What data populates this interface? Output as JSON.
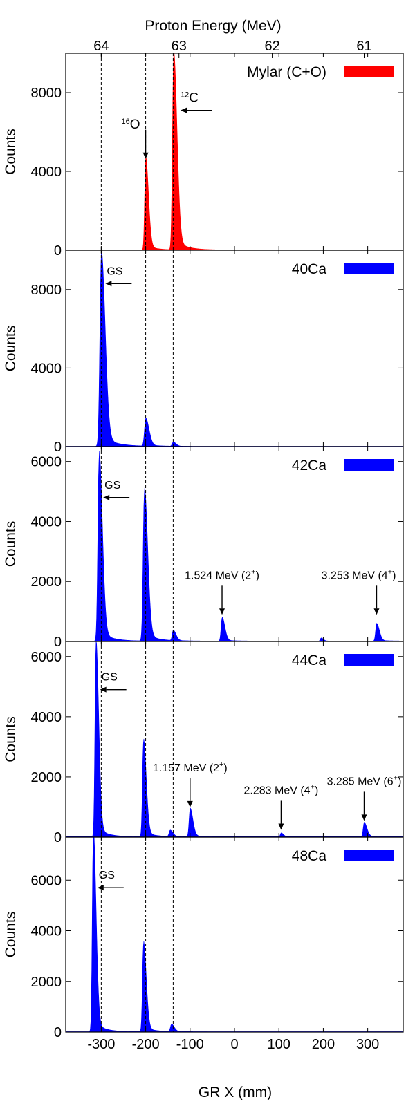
{
  "chart_data": {
    "type": "area",
    "top_axis_label": "Proton Energy (MeV)",
    "top_ticks": [
      "64",
      "63",
      "62",
      "61"
    ],
    "top_tick_x": [
      -300,
      -125,
      85,
      292
    ],
    "xlabel": "GR X (mm)",
    "xlim": [
      -380,
      380
    ],
    "x_ticks": [
      -300,
      -200,
      -100,
      0,
      100,
      200,
      300
    ],
    "dashed_reference_x": [
      -300,
      -200,
      -138
    ],
    "panels": [
      {
        "name": "Mylar (C+O)",
        "color": "#ff0000",
        "ylabel": "Counts",
        "ylim": [
          0,
          10000
        ],
        "y_ticks": [
          0,
          4000,
          8000
        ],
        "peaks": [
          {
            "x": -200,
            "height": 4500,
            "width": 5
          },
          {
            "x": -137,
            "height": 9600,
            "width": 6
          }
        ],
        "annotations": [
          {
            "mass": "16",
            "text": "O",
            "x": -200,
            "y": 4500,
            "arrow": "down"
          },
          {
            "mass": "12",
            "text": "C",
            "x": -137,
            "y": 7100,
            "arrow": "left"
          }
        ]
      },
      {
        "name": "40Ca",
        "color": "#0000ff",
        "ylabel": "Counts",
        "ylim": [
          0,
          10000
        ],
        "y_ticks": [
          0,
          4000,
          8000
        ],
        "peaks": [
          {
            "x": -300,
            "height": 9500,
            "width": 7
          },
          {
            "x": -200,
            "height": 1350,
            "width": 6
          },
          {
            "x": -138,
            "height": 200,
            "width": 5
          }
        ],
        "annotations": [
          {
            "text": "GS",
            "x": -300,
            "y": 8300,
            "arrow": "left"
          }
        ]
      },
      {
        "name": "42Ca",
        "color": "#0000ff",
        "ylabel": "Counts",
        "ylim": [
          0,
          6500
        ],
        "y_ticks": [
          0,
          2000,
          4000,
          6000
        ],
        "peaks": [
          {
            "x": -305,
            "height": 6050,
            "width": 6
          },
          {
            "x": -203,
            "height": 4900,
            "width": 6
          },
          {
            "x": -138,
            "height": 330,
            "width": 5
          },
          {
            "x": -28,
            "height": 760,
            "width": 5
          },
          {
            "x": 195,
            "height": 100,
            "width": 4
          },
          {
            "x": 320,
            "height": 560,
            "width": 5
          }
        ],
        "annotations": [
          {
            "text": "GS",
            "x": -305,
            "y": 4800,
            "arrow": "left"
          },
          {
            "text": "1.524 MeV (2",
            "sup": "+",
            "tail": ")",
            "x": -28,
            "y": 800,
            "arrow": "down"
          },
          {
            "text": "3.253 MeV (4",
            "sup": "+",
            "tail": ")",
            "x": 320,
            "y": 800,
            "arrow": "down"
          }
        ]
      },
      {
        "name": "44Ca",
        "color": "#0000ff",
        "ylabel": "Counts",
        "ylim": [
          0,
          6500
        ],
        "y_ticks": [
          0,
          2000,
          4000,
          6000
        ],
        "peaks": [
          {
            "x": -312,
            "height": 6250,
            "width": 5
          },
          {
            "x": -205,
            "height": 3100,
            "width": 5
          },
          {
            "x": -145,
            "height": 200,
            "width": 5
          },
          {
            "x": -100,
            "height": 900,
            "width": 5
          },
          {
            "x": 105,
            "height": 120,
            "width": 4
          },
          {
            "x": 292,
            "height": 450,
            "width": 5
          }
        ],
        "annotations": [
          {
            "text": "GS",
            "x": -312,
            "y": 4900,
            "arrow": "left"
          },
          {
            "text": "1.157 MeV (2",
            "sup": "+",
            "tail": ")",
            "x": -100,
            "y": 900,
            "arrow": "down"
          },
          {
            "text": "2.283 MeV (4",
            "sup": "+",
            "tail": ")",
            "x": 105,
            "y": 150,
            "arrow": "down"
          },
          {
            "text": "3.285 MeV (6",
            "sup": "+",
            "tail": ")",
            "x": 292,
            "y": 450,
            "arrow": "down"
          }
        ]
      },
      {
        "name": "48Ca",
        "color": "#0000ff",
        "ylabel": "Counts",
        "ylim": [
          0,
          7700
        ],
        "y_ticks": [
          0,
          2000,
          4000,
          6000
        ],
        "peaks": [
          {
            "x": -318,
            "height": 7700,
            "width": 5
          },
          {
            "x": -205,
            "height": 3400,
            "width": 5
          },
          {
            "x": -142,
            "height": 280,
            "width": 5
          }
        ],
        "annotations": [
          {
            "text": "GS",
            "x": -318,
            "y": 5700,
            "arrow": "left"
          }
        ]
      }
    ]
  }
}
